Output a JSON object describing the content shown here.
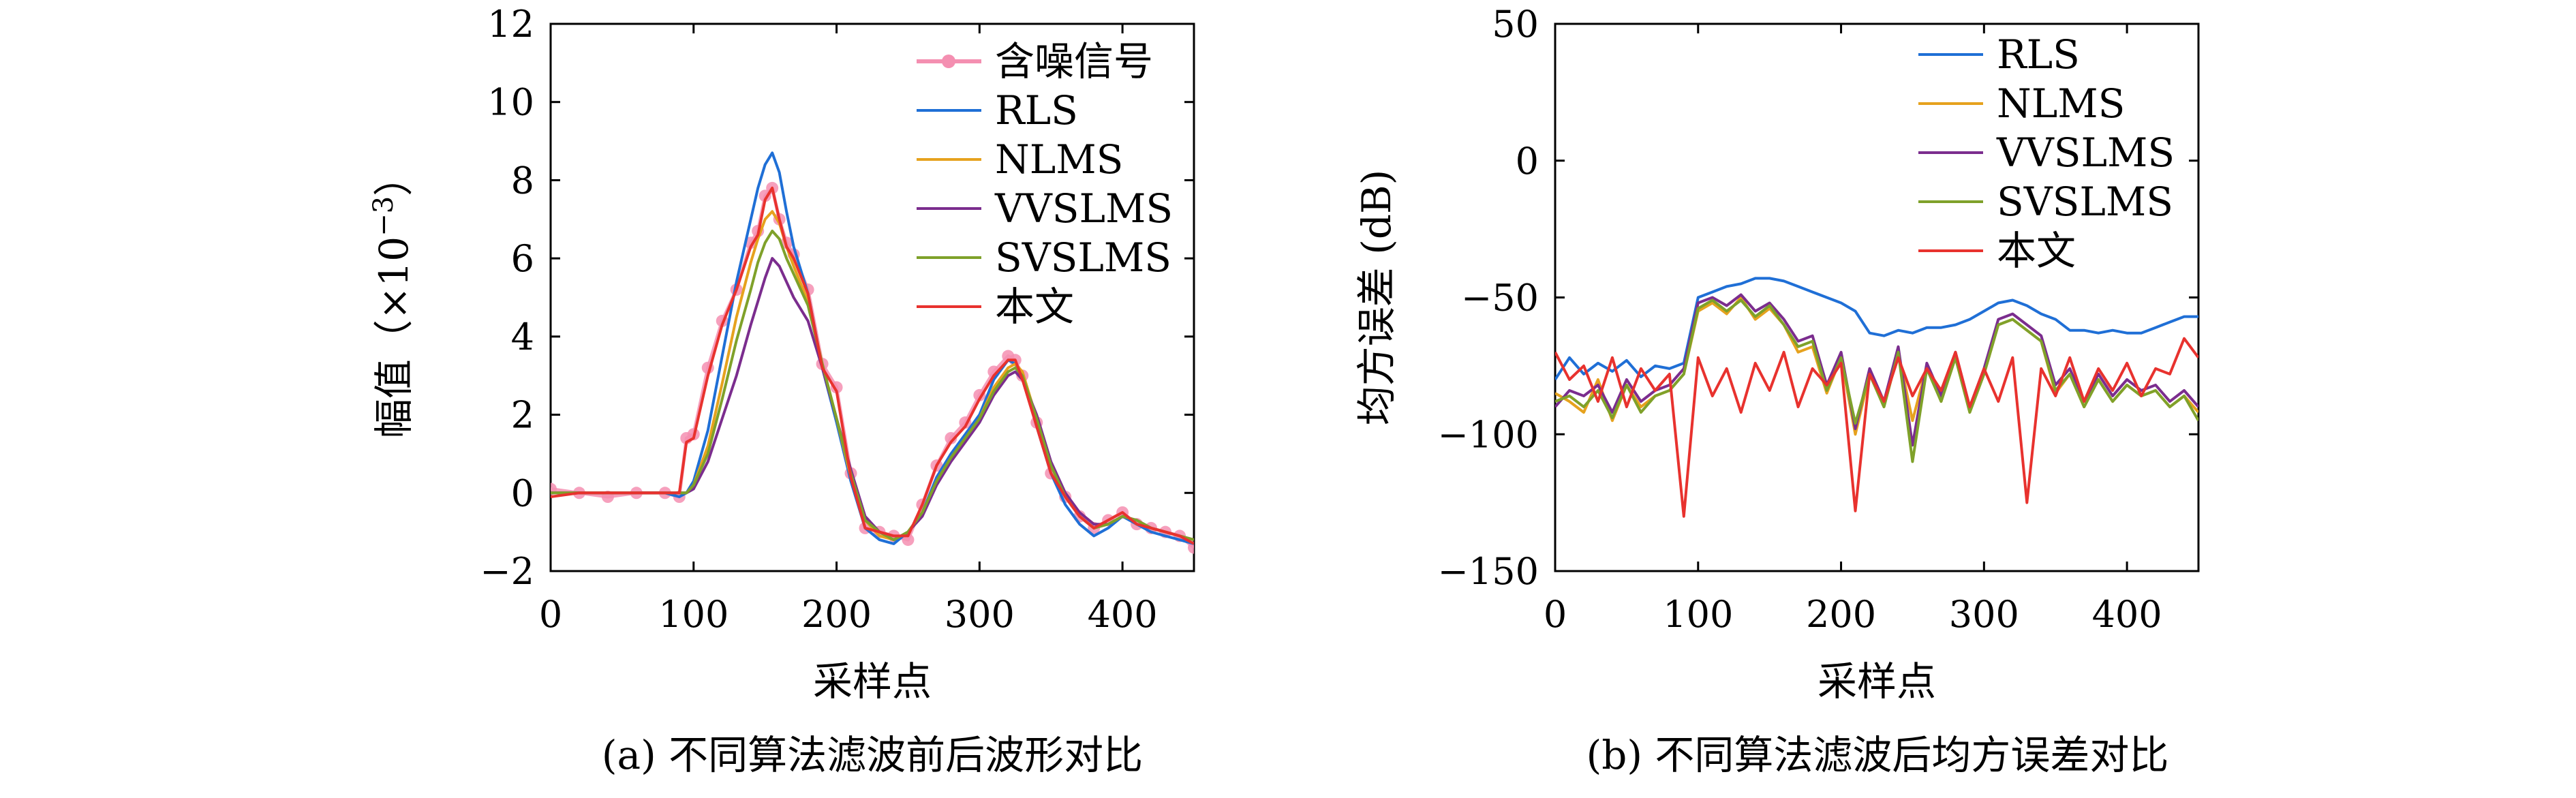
{
  "colors": {
    "noisy": "#f48fb1",
    "RLS": "#1f6fd6",
    "NLMS": "#e6a21e",
    "VVSLMS": "#7b2d8e",
    "SVSLMS": "#7fa12a",
    "proposed": "#e8322e"
  },
  "chart_data": [
    {
      "type": "line",
      "caption": "(a) 不同算法滤波前后波形对比",
      "xlabel": "采样点",
      "ylabel": "幅值（×10",
      "ylabel_exp": "−3",
      "ylabel_close": "）",
      "xlim": [
        0,
        450
      ],
      "ylim": [
        -2,
        12
      ],
      "xticks": [
        0,
        100,
        200,
        300,
        400
      ],
      "xtick_labels": [
        "0",
        "100",
        "200",
        "300",
        "400"
      ],
      "yticks": [
        -2,
        0,
        2,
        4,
        6,
        8,
        10,
        12
      ],
      "ytick_labels": [
        "−2",
        "0",
        "2",
        "4",
        "6",
        "8",
        "10",
        "12"
      ],
      "legend_position": "top-right",
      "x": [
        0,
        20,
        40,
        60,
        80,
        90,
        95,
        100,
        110,
        120,
        130,
        140,
        145,
        150,
        155,
        160,
        165,
        170,
        180,
        190,
        200,
        210,
        220,
        230,
        240,
        250,
        260,
        270,
        280,
        290,
        300,
        310,
        320,
        325,
        330,
        340,
        350,
        360,
        370,
        380,
        390,
        400,
        410,
        420,
        430,
        440,
        450
      ],
      "series": [
        {
          "name": "含噪信号",
          "key": "noisy",
          "marker": true,
          "values": [
            0.1,
            0.0,
            -0.1,
            0.0,
            0.0,
            -0.1,
            1.4,
            1.5,
            3.2,
            4.4,
            5.2,
            6.4,
            6.7,
            7.6,
            7.8,
            7.0,
            6.4,
            6.1,
            5.2,
            3.3,
            2.7,
            0.5,
            -0.9,
            -1.0,
            -1.1,
            -1.2,
            -0.3,
            0.7,
            1.4,
            1.8,
            2.5,
            3.1,
            3.5,
            3.4,
            3.0,
            1.8,
            0.5,
            -0.1,
            -0.6,
            -0.9,
            -0.7,
            -0.5,
            -0.8,
            -0.9,
            -1.0,
            -1.1,
            -1.4
          ]
        },
        {
          "name": "RLS",
          "key": "RLS",
          "values": [
            0.0,
            0.0,
            0.0,
            0.0,
            0.0,
            -0.1,
            0.0,
            0.3,
            1.6,
            3.5,
            5.4,
            7.0,
            7.8,
            8.4,
            8.7,
            8.2,
            7.2,
            6.3,
            5.1,
            3.2,
            1.8,
            0.3,
            -0.9,
            -1.2,
            -1.3,
            -1.0,
            -0.5,
            0.4,
            1.0,
            1.5,
            2.0,
            2.9,
            3.4,
            3.3,
            3.0,
            1.7,
            0.5,
            -0.3,
            -0.8,
            -1.1,
            -0.9,
            -0.6,
            -0.8,
            -1.0,
            -1.1,
            -1.2,
            -1.3
          ]
        },
        {
          "name": "NLMS",
          "key": "NLMS",
          "values": [
            0.0,
            0.0,
            0.0,
            0.0,
            0.0,
            0.0,
            0.0,
            0.2,
            1.2,
            2.8,
            4.5,
            5.9,
            6.5,
            7.0,
            7.2,
            6.9,
            6.3,
            5.8,
            4.9,
            3.3,
            1.9,
            0.4,
            -0.7,
            -1.1,
            -1.2,
            -1.0,
            -0.5,
            0.3,
            0.9,
            1.4,
            1.9,
            2.7,
            3.2,
            3.3,
            3.1,
            1.9,
            0.7,
            -0.1,
            -0.6,
            -0.9,
            -0.8,
            -0.6,
            -0.7,
            -0.9,
            -1.0,
            -1.1,
            -1.2
          ]
        },
        {
          "name": "VVSLMS",
          "key": "VVSLMS",
          "values": [
            0.0,
            0.0,
            0.0,
            0.0,
            0.0,
            0.0,
            0.0,
            0.1,
            0.8,
            1.9,
            3.0,
            4.3,
            4.9,
            5.5,
            6.0,
            5.8,
            5.4,
            5.0,
            4.4,
            3.2,
            1.9,
            0.6,
            -0.6,
            -1.0,
            -1.2,
            -1.0,
            -0.6,
            0.2,
            0.8,
            1.3,
            1.8,
            2.5,
            3.0,
            3.1,
            2.9,
            2.0,
            0.8,
            0.0,
            -0.5,
            -0.8,
            -0.8,
            -0.6,
            -0.7,
            -0.9,
            -1.0,
            -1.1,
            -1.2
          ]
        },
        {
          "name": "SVSLMS",
          "key": "SVSLMS",
          "values": [
            0.0,
            0.0,
            0.0,
            0.0,
            0.0,
            0.0,
            0.0,
            0.2,
            1.0,
            2.4,
            3.9,
            5.2,
            5.9,
            6.4,
            6.7,
            6.5,
            6.0,
            5.6,
            4.8,
            3.3,
            1.9,
            0.5,
            -0.7,
            -1.0,
            -1.2,
            -1.0,
            -0.5,
            0.3,
            0.9,
            1.4,
            1.9,
            2.6,
            3.1,
            3.2,
            3.0,
            1.9,
            0.7,
            -0.1,
            -0.6,
            -0.9,
            -0.8,
            -0.6,
            -0.7,
            -0.9,
            -1.0,
            -1.1,
            -1.2
          ]
        },
        {
          "name": "本文",
          "key": "proposed",
          "values": [
            -0.1,
            0.0,
            0.0,
            0.0,
            0.0,
            0.0,
            1.3,
            1.4,
            3.0,
            4.3,
            5.2,
            6.3,
            6.6,
            7.5,
            7.8,
            7.0,
            6.3,
            6.0,
            5.1,
            3.2,
            2.6,
            0.4,
            -0.9,
            -1.0,
            -1.1,
            -1.1,
            -0.3,
            0.7,
            1.3,
            1.7,
            2.4,
            3.0,
            3.4,
            3.4,
            2.9,
            1.7,
            0.5,
            -0.1,
            -0.6,
            -0.9,
            -0.7,
            -0.5,
            -0.8,
            -0.9,
            -1.0,
            -1.1,
            -1.3
          ]
        }
      ]
    },
    {
      "type": "line",
      "caption": "(b) 不同算法滤波后均方误差对比",
      "xlabel": "采样点",
      "ylabel": "均方误差 (dB)",
      "xlim": [
        0,
        450
      ],
      "ylim": [
        -150,
        50
      ],
      "xticks": [
        0,
        100,
        200,
        300,
        400
      ],
      "xtick_labels": [
        "0",
        "100",
        "200",
        "300",
        "400"
      ],
      "yticks": [
        -150,
        -100,
        -50,
        0,
        50
      ],
      "ytick_labels": [
        "−150",
        "−100",
        "−50",
        "0",
        "50"
      ],
      "legend_position": "top-right",
      "x": [
        0,
        10,
        20,
        30,
        40,
        50,
        60,
        70,
        80,
        90,
        100,
        110,
        120,
        130,
        140,
        150,
        160,
        170,
        180,
        190,
        200,
        210,
        220,
        230,
        240,
        250,
        260,
        270,
        280,
        290,
        300,
        310,
        320,
        330,
        340,
        350,
        360,
        370,
        380,
        390,
        400,
        410,
        420,
        430,
        440,
        450
      ],
      "series": [
        {
          "name": "RLS",
          "key": "RLS",
          "values": [
            -80,
            -72,
            -78,
            -74,
            -77,
            -73,
            -79,
            -75,
            -76,
            -74,
            -50,
            -48,
            -46,
            -45,
            -43,
            -43,
            -44,
            -46,
            -48,
            -50,
            -52,
            -55,
            -63,
            -64,
            -62,
            -63,
            -61,
            -61,
            -60,
            -58,
            -55,
            -52,
            -51,
            -53,
            -56,
            -58,
            -62,
            -62,
            -63,
            -62,
            -63,
            -63,
            -61,
            -59,
            -57,
            -57
          ]
        },
        {
          "name": "NLMS",
          "key": "NLMS",
          "values": [
            -85,
            -88,
            -92,
            -80,
            -95,
            -82,
            -90,
            -86,
            -84,
            -78,
            -55,
            -52,
            -56,
            -50,
            -58,
            -54,
            -60,
            -70,
            -68,
            -85,
            -72,
            -100,
            -78,
            -90,
            -70,
            -95,
            -75,
            -88,
            -72,
            -92,
            -78,
            -60,
            -58,
            -62,
            -66,
            -85,
            -78,
            -90,
            -80,
            -88,
            -82,
            -86,
            -84,
            -90,
            -86,
            -92
          ]
        },
        {
          "name": "VVSLMS",
          "key": "VVSLMS",
          "values": [
            -90,
            -84,
            -86,
            -82,
            -92,
            -80,
            -88,
            -84,
            -82,
            -76,
            -52,
            -50,
            -53,
            -49,
            -55,
            -52,
            -58,
            -66,
            -64,
            -82,
            -70,
            -98,
            -76,
            -88,
            -68,
            -104,
            -74,
            -86,
            -70,
            -90,
            -76,
            -58,
            -56,
            -60,
            -64,
            -82,
            -76,
            -88,
            -78,
            -86,
            -80,
            -84,
            -82,
            -88,
            -84,
            -90
          ]
        },
        {
          "name": "SVSLMS",
          "key": "SVSLMS",
          "values": [
            -88,
            -86,
            -90,
            -84,
            -94,
            -82,
            -92,
            -86,
            -84,
            -78,
            -54,
            -51,
            -55,
            -51,
            -57,
            -53,
            -60,
            -68,
            -66,
            -84,
            -72,
            -96,
            -78,
            -90,
            -70,
            -110,
            -76,
            -88,
            -72,
            -92,
            -78,
            -60,
            -58,
            -62,
            -66,
            -84,
            -78,
            -90,
            -80,
            -88,
            -82,
            -86,
            -84,
            -90,
            -86,
            -95
          ]
        },
        {
          "name": "本文",
          "key": "proposed",
          "values": [
            -70,
            -80,
            -75,
            -88,
            -72,
            -90,
            -76,
            -84,
            -78,
            -130,
            -72,
            -86,
            -76,
            -92,
            -74,
            -84,
            -70,
            -90,
            -76,
            -82,
            -74,
            -128,
            -78,
            -88,
            -72,
            -86,
            -76,
            -84,
            -70,
            -90,
            -76,
            -88,
            -72,
            -125,
            -76,
            -86,
            -72,
            -88,
            -76,
            -84,
            -74,
            -86,
            -76,
            -78,
            -65,
            -72
          ]
        }
      ]
    }
  ]
}
